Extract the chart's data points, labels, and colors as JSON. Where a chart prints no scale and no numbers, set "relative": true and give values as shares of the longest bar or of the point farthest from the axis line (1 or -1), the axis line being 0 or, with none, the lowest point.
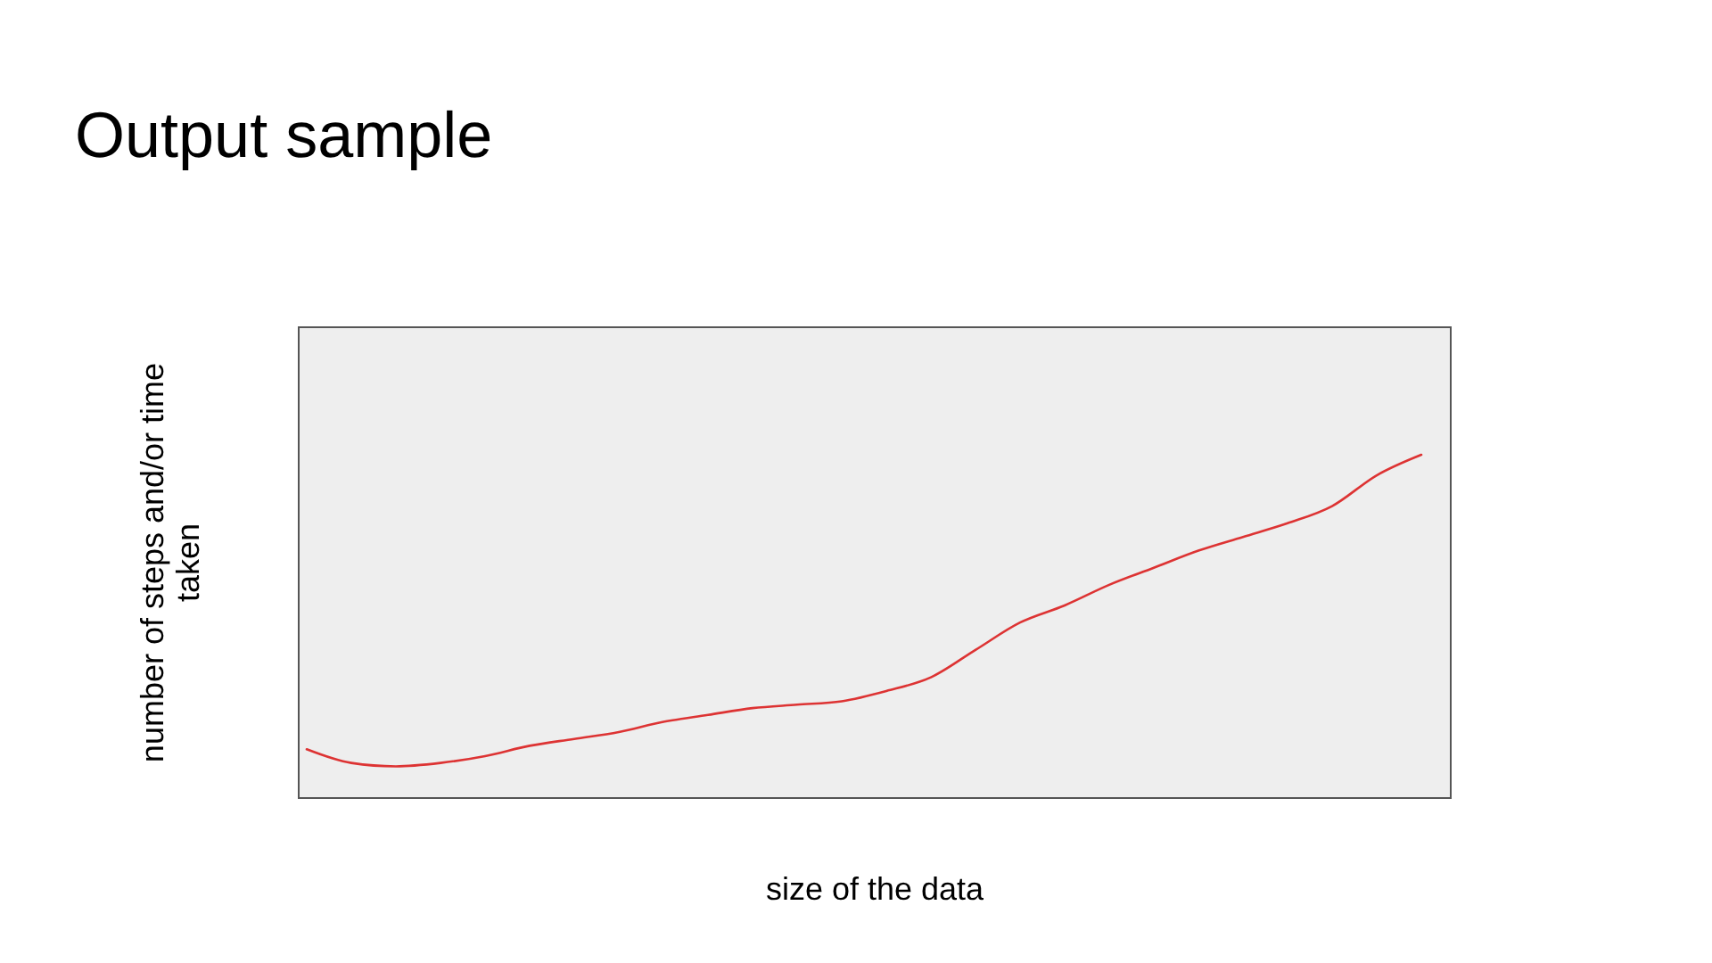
{
  "chart_data": {
    "type": "line",
    "title": "Output sample",
    "xlabel": "size of the data",
    "ylabel": "number of steps and/or time taken",
    "relative": true,
    "line_style": "solid",
    "categories": [
      null,
      null,
      null,
      null,
      null,
      null,
      null,
      null,
      null,
      null,
      null,
      null,
      null,
      null,
      null,
      null,
      null,
      null,
      null,
      null,
      null,
      null,
      null,
      null,
      null,
      null
    ],
    "series": [
      {
        "color": "#dd3333",
        "values": [
          0.14,
          0.1,
          0.09,
          0.1,
          0.12,
          0.15,
          0.17,
          0.19,
          0.22,
          0.24,
          0.26,
          0.27,
          0.28,
          0.31,
          0.35,
          0.43,
          0.51,
          0.56,
          0.62,
          0.67,
          0.72,
          0.76,
          0.8,
          0.85,
          0.94,
          1
        ]
      }
    ]
  }
}
